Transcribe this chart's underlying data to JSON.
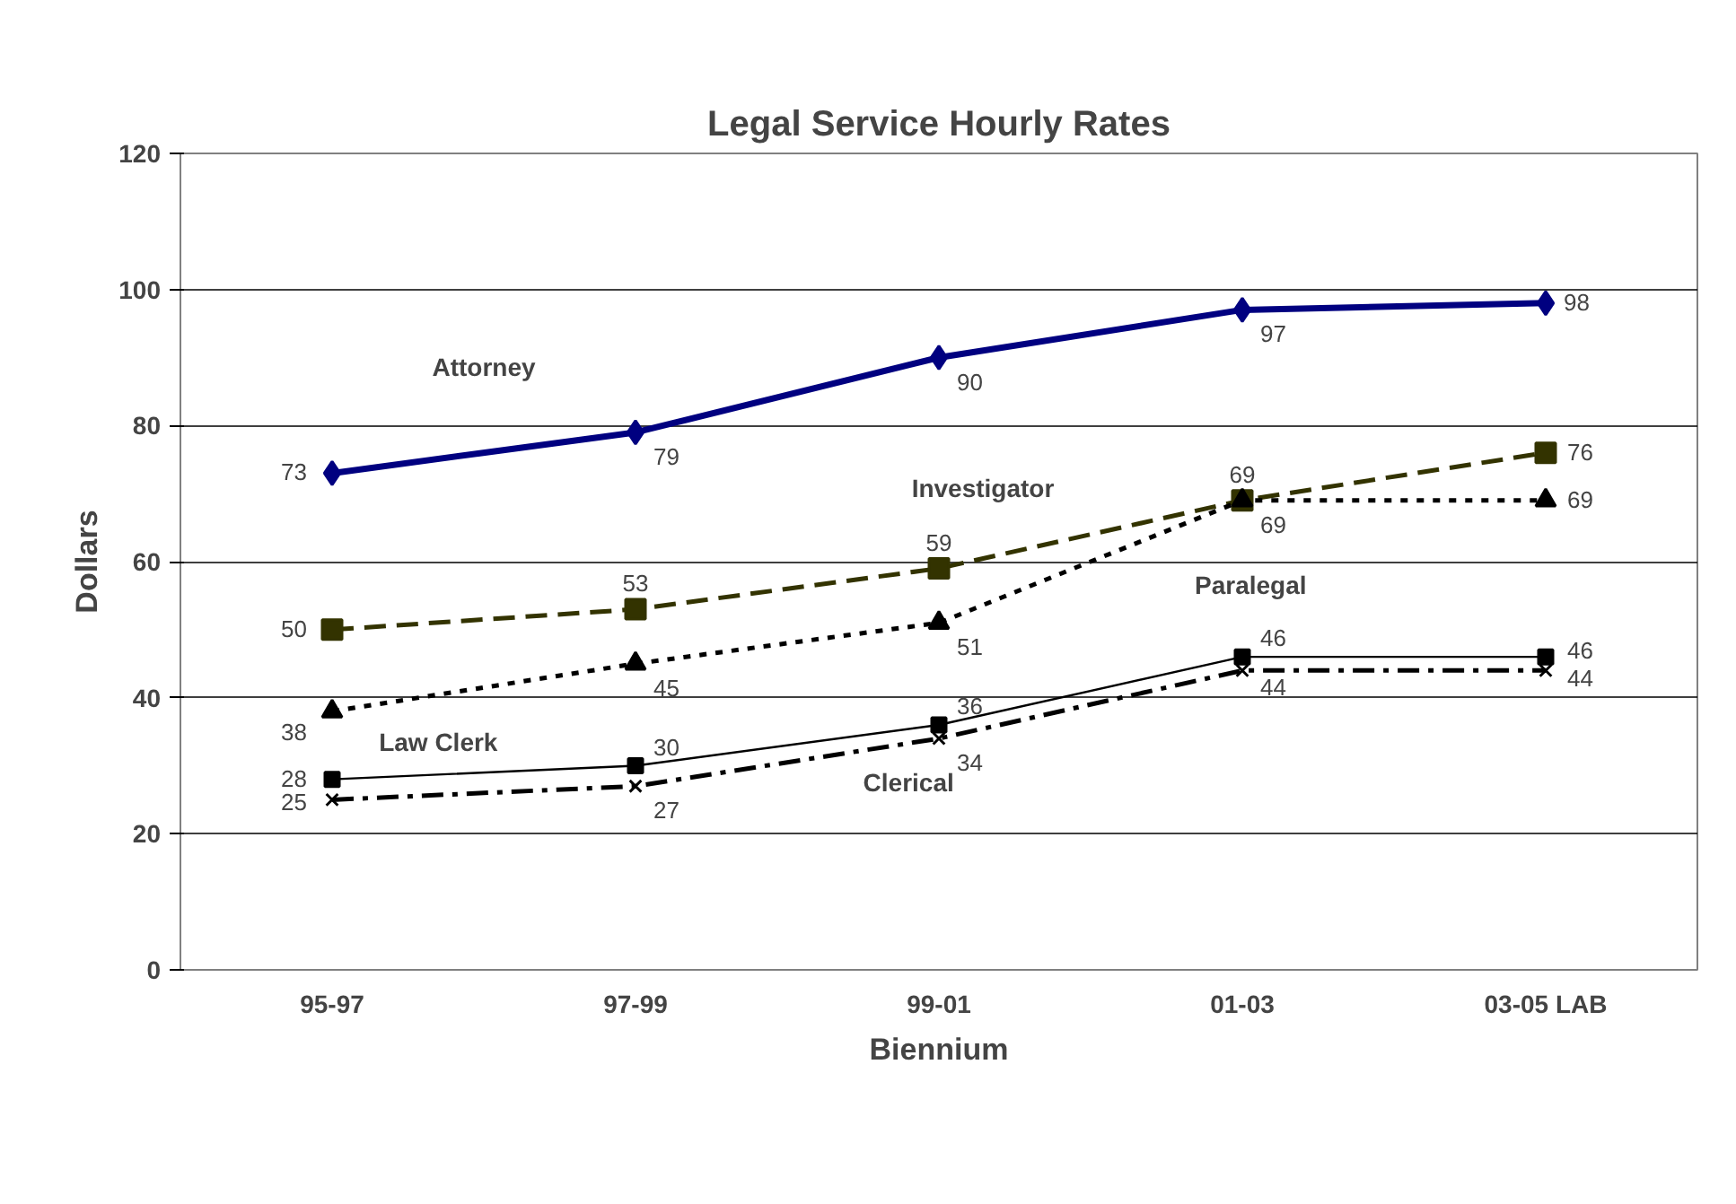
{
  "chart_data": {
    "type": "line",
    "title": "Legal Service Hourly Rates",
    "xlabel": "Biennium",
    "ylabel": "Dollars",
    "categories": [
      "95-97",
      "97-99",
      "99-01",
      "01-03",
      "03-05 LAB"
    ],
    "ylim": [
      0,
      120
    ],
    "yticks": [
      0,
      20,
      40,
      60,
      80,
      100,
      120
    ],
    "grid": "y",
    "data_labels": true,
    "series": [
      {
        "name": "Attorney",
        "color": "#000080",
        "marker": "diamond",
        "line_style": "solid",
        "values": [
          73,
          79,
          90,
          97,
          98
        ]
      },
      {
        "name": "Investigator",
        "color": "#333300",
        "marker": "square",
        "line_style": "dashed",
        "values": [
          50,
          53,
          59,
          69,
          76
        ]
      },
      {
        "name": "Paralegal",
        "color": "#000000",
        "marker": "triangle",
        "line_style": "dotted",
        "values": [
          38,
          45,
          51,
          69,
          69
        ]
      },
      {
        "name": "Law Clerk",
        "color": "#000000",
        "marker": "square",
        "line_style": "solid",
        "values": [
          28,
          30,
          36,
          46,
          46
        ]
      },
      {
        "name": "Clerical",
        "color": "#000000",
        "marker": "cross",
        "line_style": "dashdot",
        "values": [
          25,
          27,
          34,
          44,
          44
        ]
      }
    ]
  }
}
